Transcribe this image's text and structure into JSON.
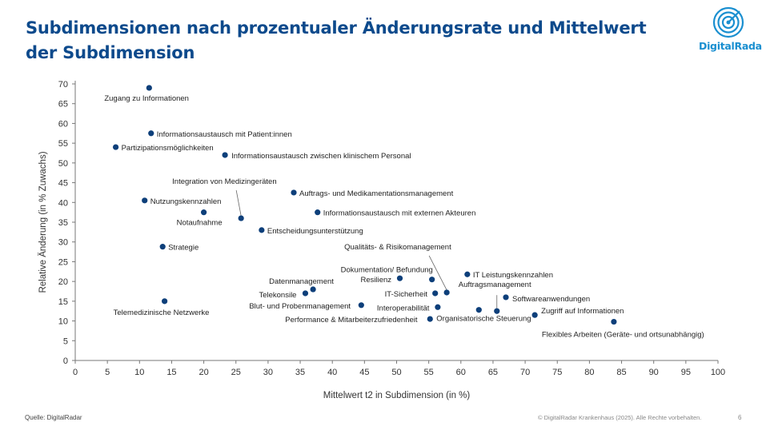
{
  "header": {
    "title": "Subdimensionen nach prozentualer Änderungsrate und Mittelwert der Subdimension",
    "logo_text": "DigitalRadar"
  },
  "footer": {
    "source": "Quelle: DigitalRadar",
    "copyright": "© DigitalRadar Krankenhaus (2025). Alle Rechte vorbehalten.",
    "page_number": "6"
  },
  "colors": {
    "title": "#0d4a8c",
    "point": "#0d3f7a",
    "logo": "#1a8fd0"
  },
  "chart_data": {
    "type": "scatter",
    "xlabel": "Mittelwert t2 in Subdimension (in %)",
    "ylabel": "Relative Änderung (in % Zuwachs)",
    "xlim": [
      0,
      100
    ],
    "ylim": [
      0,
      70
    ],
    "xticks": [
      "0",
      "5",
      "10",
      "15",
      "20",
      "25",
      "30",
      "35",
      "40",
      "45",
      "50",
      "55",
      "60",
      "65",
      "70",
      "75",
      "80",
      "85",
      "90",
      "95",
      "100"
    ],
    "yticks": [
      "0",
      "5",
      "10",
      "15",
      "20",
      "25",
      "30",
      "35",
      "40",
      "45",
      "50",
      "55",
      "60",
      "65",
      "70"
    ],
    "grid": false,
    "points": [
      {
        "label": "Zugang zu Informationen",
        "x": 11.5,
        "y": 69
      },
      {
        "label": "Informationsaustausch mit Patient:innen",
        "x": 11.8,
        "y": 57.5
      },
      {
        "label": "Partizipationsmöglichkeiten",
        "x": 6.3,
        "y": 54
      },
      {
        "label": "Informationsaustausch zwischen klinischem Personal",
        "x": 23.3,
        "y": 52
      },
      {
        "label": "Integration von Medizingeräten",
        "x": 25.8,
        "y": 36
      },
      {
        "label": "Nutzungskennzahlen",
        "x": 10.8,
        "y": 40.5
      },
      {
        "label": "Notaufnahme",
        "x": 20,
        "y": 37.5
      },
      {
        "label": "Auftrags- und Medikamentationsmanagement",
        "x": 34,
        "y": 42.5
      },
      {
        "label": "Informationsaustausch mit externen Akteuren",
        "x": 37.7,
        "y": 37.5
      },
      {
        "label": "Entscheidungsunterstützung",
        "x": 29,
        "y": 33
      },
      {
        "label": "Strategie",
        "x": 13.6,
        "y": 28.8
      },
      {
        "label": "Qualitäts- & Risikomanagement",
        "x": 57.8,
        "y": 17.2
      },
      {
        "label": "IT Leistungskennzahlen",
        "x": 61,
        "y": 21.8
      },
      {
        "label": "Dokumentation/ Befundung",
        "x": 55.5,
        "y": 20.5
      },
      {
        "label": "Resilienz",
        "x": 50.5,
        "y": 20.8
      },
      {
        "label": "Datenmanagement",
        "x": 37,
        "y": 18
      },
      {
        "label": "Telekonsile",
        "x": 35.8,
        "y": 17
      },
      {
        "label": "IT-Sicherheit",
        "x": 56,
        "y": 17
      },
      {
        "label": "Auftragsmanagement",
        "x": 65.6,
        "y": 12.5
      },
      {
        "label": "Softwareanwendungen",
        "x": 67,
        "y": 16
      },
      {
        "label": "Telemedizinische Netzwerke",
        "x": 13.9,
        "y": 15
      },
      {
        "label": "Blut- und Probenmanagement",
        "x": 44.5,
        "y": 14
      },
      {
        "label": "Interoperabilität",
        "x": 56.4,
        "y": 13.5
      },
      {
        "label": "Organisatorische Steuerung",
        "x": 62.8,
        "y": 12.8
      },
      {
        "label": "Zugriff auf Informationen",
        "x": 71.5,
        "y": 11.5
      },
      {
        "label": "Performance & Mitarbeiterzufriedenheit",
        "x": 55.2,
        "y": 10.5
      },
      {
        "label": "Flexibles Arbeiten (Geräte- und ortsunabhängig)",
        "x": 83.8,
        "y": 9.8
      }
    ]
  }
}
